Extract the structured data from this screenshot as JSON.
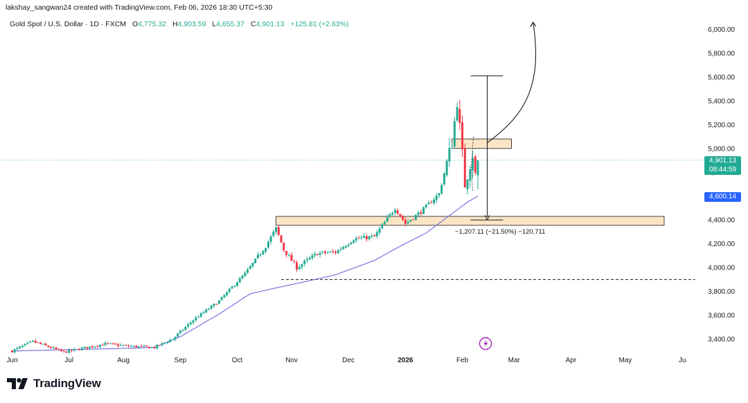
{
  "header": {
    "credit": "lakshay_sangwan24 created with TradingView.com, Feb 06, 2026 18:30 UTC+5:30"
  },
  "legend": {
    "symbol": "Gold Spot / U.S. Dollar · 1D · FXCM",
    "open_key": "O",
    "open": "4,775.32",
    "high_key": "H",
    "high": "4,903.59",
    "low_key": "L",
    "low": "4,655.37",
    "close_key": "C",
    "close": "4,901.13",
    "change": "+125.81 (+2.63%)"
  },
  "price_labels": {
    "last_price": "4,901.13",
    "countdown": "08:44:59",
    "ma_value": "4,600.14"
  },
  "annotations": {
    "measure": "−1,207.11 (−21.50%) −120,711"
  },
  "branding": {
    "name": "TradingView"
  },
  "colors": {
    "up": "#22ab94",
    "down": "#f23645",
    "ma": "#7b6fe0",
    "zone_fill": "#fce5c4",
    "zone_stroke": "#131722",
    "grid_dot": "#22ab94"
  },
  "chart_data": {
    "type": "candlestick",
    "title": "Gold Spot / U.S. Dollar · 1D · FXCM",
    "xlabel": "",
    "ylabel": "",
    "ylim": [
      3240,
      6080
    ],
    "yticks": [
      "6,000.00",
      "5,800.00",
      "5,600.00",
      "5,400.00",
      "5,200.00",
      "5,000.00",
      "4,800.00",
      "4,600.00",
      "4,400.00",
      "4,200.00",
      "4,000.00",
      "3,800.00",
      "3,600.00",
      "3,400.00"
    ],
    "ytick_values": [
      6000,
      5800,
      5600,
      5400,
      5200,
      5000,
      4800,
      4600,
      4400,
      4200,
      4000,
      3800,
      3600,
      3400
    ],
    "month_labels": [
      "Jun",
      "Jul",
      "Aug",
      "Sep",
      "Oct",
      "Nov",
      "Dec",
      "2026",
      "Feb",
      "Mar",
      "Apr",
      "May",
      "Ju"
    ],
    "month_positions": [
      0,
      22,
      43,
      65,
      87,
      108,
      130,
      152,
      174,
      194,
      216,
      237,
      259
    ],
    "x_range": [
      -2,
      267
    ],
    "key_points": [
      {
        "day": 0,
        "price": 3300
      },
      {
        "day": 8,
        "price": 3380
      },
      {
        "day": 20,
        "price": 3290
      },
      {
        "day": 36,
        "price": 3360
      },
      {
        "day": 45,
        "price": 3340
      },
      {
        "day": 55,
        "price": 3330
      },
      {
        "day": 62,
        "price": 3400
      },
      {
        "day": 70,
        "price": 3560
      },
      {
        "day": 80,
        "price": 3720
      },
      {
        "day": 90,
        "price": 3950
      },
      {
        "day": 98,
        "price": 4180
      },
      {
        "day": 102,
        "price": 4330
      },
      {
        "day": 105,
        "price": 4150
      },
      {
        "day": 110,
        "price": 4000
      },
      {
        "day": 118,
        "price": 4120
      },
      {
        "day": 125,
        "price": 4130
      },
      {
        "day": 132,
        "price": 4240
      },
      {
        "day": 140,
        "price": 4260
      },
      {
        "day": 148,
        "price": 4500
      },
      {
        "day": 152,
        "price": 4370
      },
      {
        "day": 158,
        "price": 4470
      },
      {
        "day": 165,
        "price": 4620
      },
      {
        "day": 170,
        "price": 5050
      },
      {
        "day": 172,
        "price": 5400
      },
      {
        "day": 174,
        "price": 4950
      },
      {
        "day": 175,
        "price": 4700
      },
      {
        "day": 177,
        "price": 4870
      },
      {
        "day": 178,
        "price": 4950
      },
      {
        "day": 179,
        "price": 4775
      },
      {
        "day": 180,
        "price": 4901
      }
    ],
    "last_candle": {
      "open": 4775.32,
      "high": 4903.59,
      "low": 4655.37,
      "close": 4901.13
    },
    "moving_average": [
      {
        "day": 0,
        "price": 3300
      },
      {
        "day": 40,
        "price": 3320
      },
      {
        "day": 55,
        "price": 3330
      },
      {
        "day": 65,
        "price": 3420
      },
      {
        "day": 80,
        "price": 3610
      },
      {
        "day": 92,
        "price": 3780
      },
      {
        "day": 100,
        "price": 3820
      },
      {
        "day": 115,
        "price": 3890
      },
      {
        "day": 125,
        "price": 3940
      },
      {
        "day": 140,
        "price": 4060
      },
      {
        "day": 150,
        "price": 4180
      },
      {
        "day": 160,
        "price": 4290
      },
      {
        "day": 168,
        "price": 4420
      },
      {
        "day": 176,
        "price": 4550
      },
      {
        "day": 180,
        "price": 4600.14
      }
    ],
    "zones": [
      {
        "day_from": 170,
        "day_to": 193,
        "price_low": 5000,
        "price_high": 5080
      },
      {
        "day_from": 102,
        "day_to": 252,
        "price_low": 4355,
        "price_high": 4430
      }
    ],
    "support_line": {
      "price": 3900,
      "day_from": 104,
      "day_to": 264
    },
    "measure": {
      "day": 178,
      "price_top": 5610,
      "price_bottom": 4400,
      "change": -1207.11,
      "change_pct": -21.5,
      "ticks": -120711
    },
    "projection": {
      "from_day": 180,
      "from_price": 5050,
      "to_day": 200,
      "to_price": 6060
    },
    "last_price": 4901.13,
    "ma_value": 4600.14
  }
}
